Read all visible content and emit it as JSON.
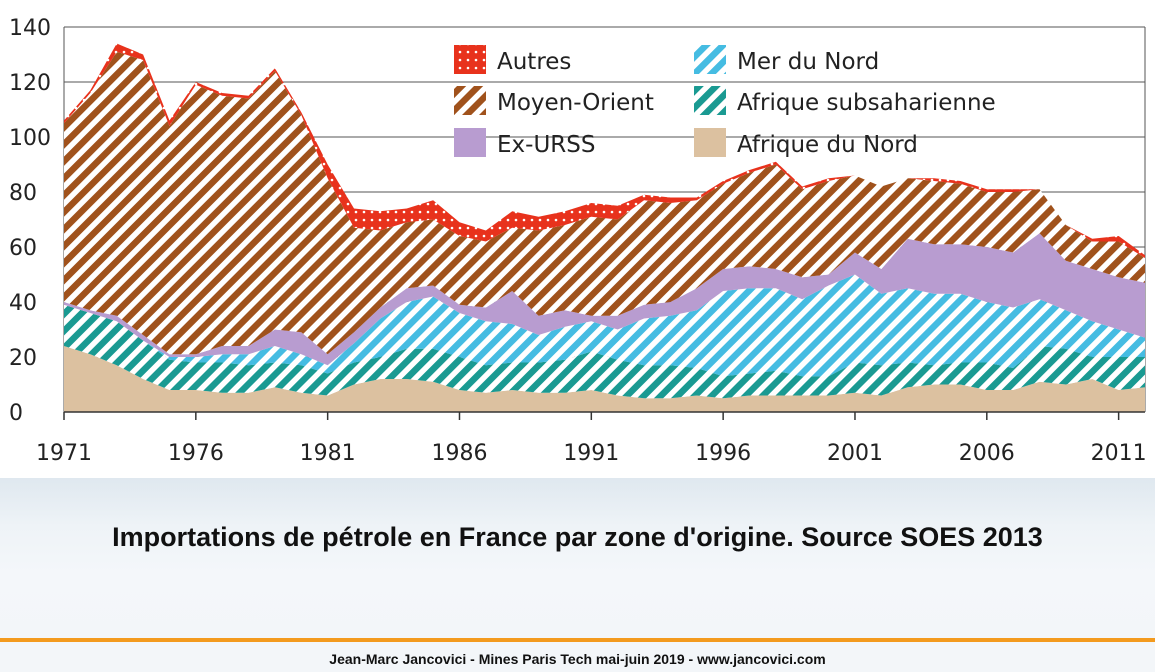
{
  "chart_data": {
    "type": "area",
    "stacked": true,
    "xlim": [
      1971,
      2012
    ],
    "ylim": [
      0,
      140
    ],
    "grid": true,
    "legend_position": "top-right",
    "x_ticks": [
      "1971",
      "1976",
      "1981",
      "1986",
      "1991",
      "1996",
      "2001",
      "2006",
      "2011"
    ],
    "y_ticks": [
      "0",
      "20",
      "40",
      "60",
      "80",
      "100",
      "120",
      "140"
    ],
    "x": [
      1971,
      1972,
      1973,
      1974,
      1975,
      1976,
      1977,
      1978,
      1979,
      1980,
      1981,
      1982,
      1983,
      1984,
      1985,
      1986,
      1987,
      1988,
      1989,
      1990,
      1991,
      1992,
      1993,
      1994,
      1995,
      1996,
      1997,
      1998,
      1999,
      2000,
      2001,
      2002,
      2003,
      2004,
      2005,
      2006,
      2007,
      2008,
      2009,
      2010,
      2011,
      2012
    ],
    "series": [
      {
        "name": "Afrique du Nord",
        "color": "#dcc1a0",
        "pattern": "solid",
        "values": [
          24,
          21,
          17,
          12,
          8,
          8,
          7,
          7,
          9,
          7,
          6,
          10,
          12,
          12,
          11,
          8,
          7,
          8,
          7,
          7,
          8,
          6,
          5,
          5,
          6,
          5,
          6,
          6,
          6,
          6,
          7,
          6,
          9,
          10,
          10,
          8,
          8,
          11,
          10,
          12,
          8,
          9
        ]
      },
      {
        "name": "Afrique subsaharienne",
        "color": "#1a9a92",
        "pattern": "hatch",
        "values": [
          15,
          15,
          16,
          14,
          11,
          10,
          11,
          10,
          9,
          10,
          8,
          8,
          8,
          11,
          12,
          12,
          10,
          10,
          11,
          12,
          14,
          13,
          12,
          12,
          10,
          8,
          8,
          9,
          7,
          7,
          11,
          11,
          9,
          7,
          8,
          10,
          8,
          13,
          13,
          8,
          12,
          11
        ]
      },
      {
        "name": "Mer du Nord",
        "color": "#45bce2",
        "pattern": "hatch",
        "values": [
          0,
          0,
          0,
          0,
          1,
          2,
          3,
          4,
          6,
          4,
          3,
          7,
          14,
          17,
          19,
          16,
          16,
          14,
          10,
          12,
          11,
          11,
          17,
          18,
          21,
          31,
          31,
          30,
          28,
          33,
          32,
          26,
          27,
          26,
          25,
          22,
          22,
          17,
          14,
          13,
          10,
          7
        ]
      },
      {
        "name": "Ex-URSS",
        "color": "#b89cd0",
        "pattern": "solid",
        "values": [
          1,
          1,
          2,
          2,
          1,
          1,
          3,
          3,
          6,
          8,
          4,
          4,
          4,
          5,
          4,
          3,
          5,
          12,
          7,
          6,
          2,
          5,
          5,
          5,
          8,
          8,
          8,
          7,
          8,
          4,
          8,
          9,
          18,
          18,
          18,
          20,
          20,
          24,
          18,
          19,
          19,
          20
        ]
      },
      {
        "name": "Moyen-Orient",
        "color": "#a0521c",
        "pattern": "hatch",
        "values": [
          65,
          79,
          96,
          100,
          83,
          98,
          91,
          90,
          94,
          79,
          64,
          38,
          28,
          24,
          24,
          25,
          24,
          23,
          31,
          31,
          36,
          35,
          38,
          36,
          32,
          31,
          34,
          38,
          32,
          34,
          28,
          30,
          22,
          23,
          22,
          20,
          22,
          16,
          13,
          10,
          13,
          9
        ]
      },
      {
        "name": "Autres",
        "color": "#e8321c",
        "pattern": "dots",
        "values": [
          1,
          1,
          3,
          2,
          2,
          1,
          1,
          1,
          1,
          1,
          5,
          7,
          7,
          5,
          7,
          5,
          4,
          6,
          5,
          5,
          5,
          5,
          2,
          2,
          1,
          1,
          1,
          1,
          1,
          1,
          0,
          0,
          0,
          1,
          1,
          1,
          1,
          0,
          0,
          1,
          2,
          1
        ]
      }
    ],
    "legend_order": [
      "Autres",
      "Mer du Nord",
      "Moyen-Orient",
      "Afrique subsaharienne",
      "Ex-URSS",
      "Afrique du Nord"
    ]
  },
  "caption": "Importations de pétrole en France par zone d'origine. Source SOES 2013",
  "footer": "Jean-Marc Jancovici - Mines Paris Tech mai-juin 2019 - www.jancovici.com"
}
